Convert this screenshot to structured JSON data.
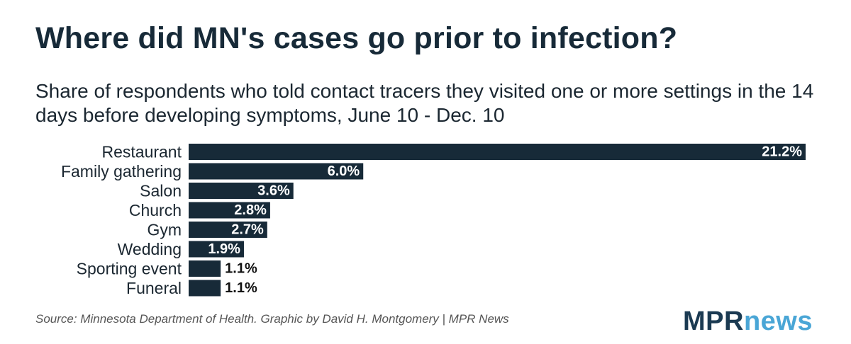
{
  "title": "Where did MN's cases go prior to infection?",
  "subtitle": "Share of respondents who told contact tracers they visited one or more settings in the 14 days before developing symptoms, June 10 - Dec. 10",
  "source": "Source: Minnesota Department of Health. Graphic by David H. Montgomery | MPR News",
  "logo": {
    "part1": "MPR",
    "part2": "news",
    "color1": "#1b3a52",
    "color2": "#4aa6d6"
  },
  "chart_data": {
    "type": "bar",
    "orientation": "horizontal",
    "categories": [
      "Restaurant",
      "Family gathering",
      "Salon",
      "Church",
      "Gym",
      "Wedding",
      "Sporting event",
      "Funeral"
    ],
    "values": [
      21.2,
      6.0,
      3.6,
      2.8,
      2.7,
      1.9,
      1.1,
      1.1
    ],
    "labels": [
      "21.2%",
      "6.0%",
      "3.6%",
      "2.8%",
      "2.7%",
      "1.9%",
      "1.1%",
      "1.1%"
    ],
    "unit": "%",
    "bar_color": "#172a38",
    "xlim": [
      0,
      21.2
    ],
    "grid": false,
    "legend": "none"
  }
}
